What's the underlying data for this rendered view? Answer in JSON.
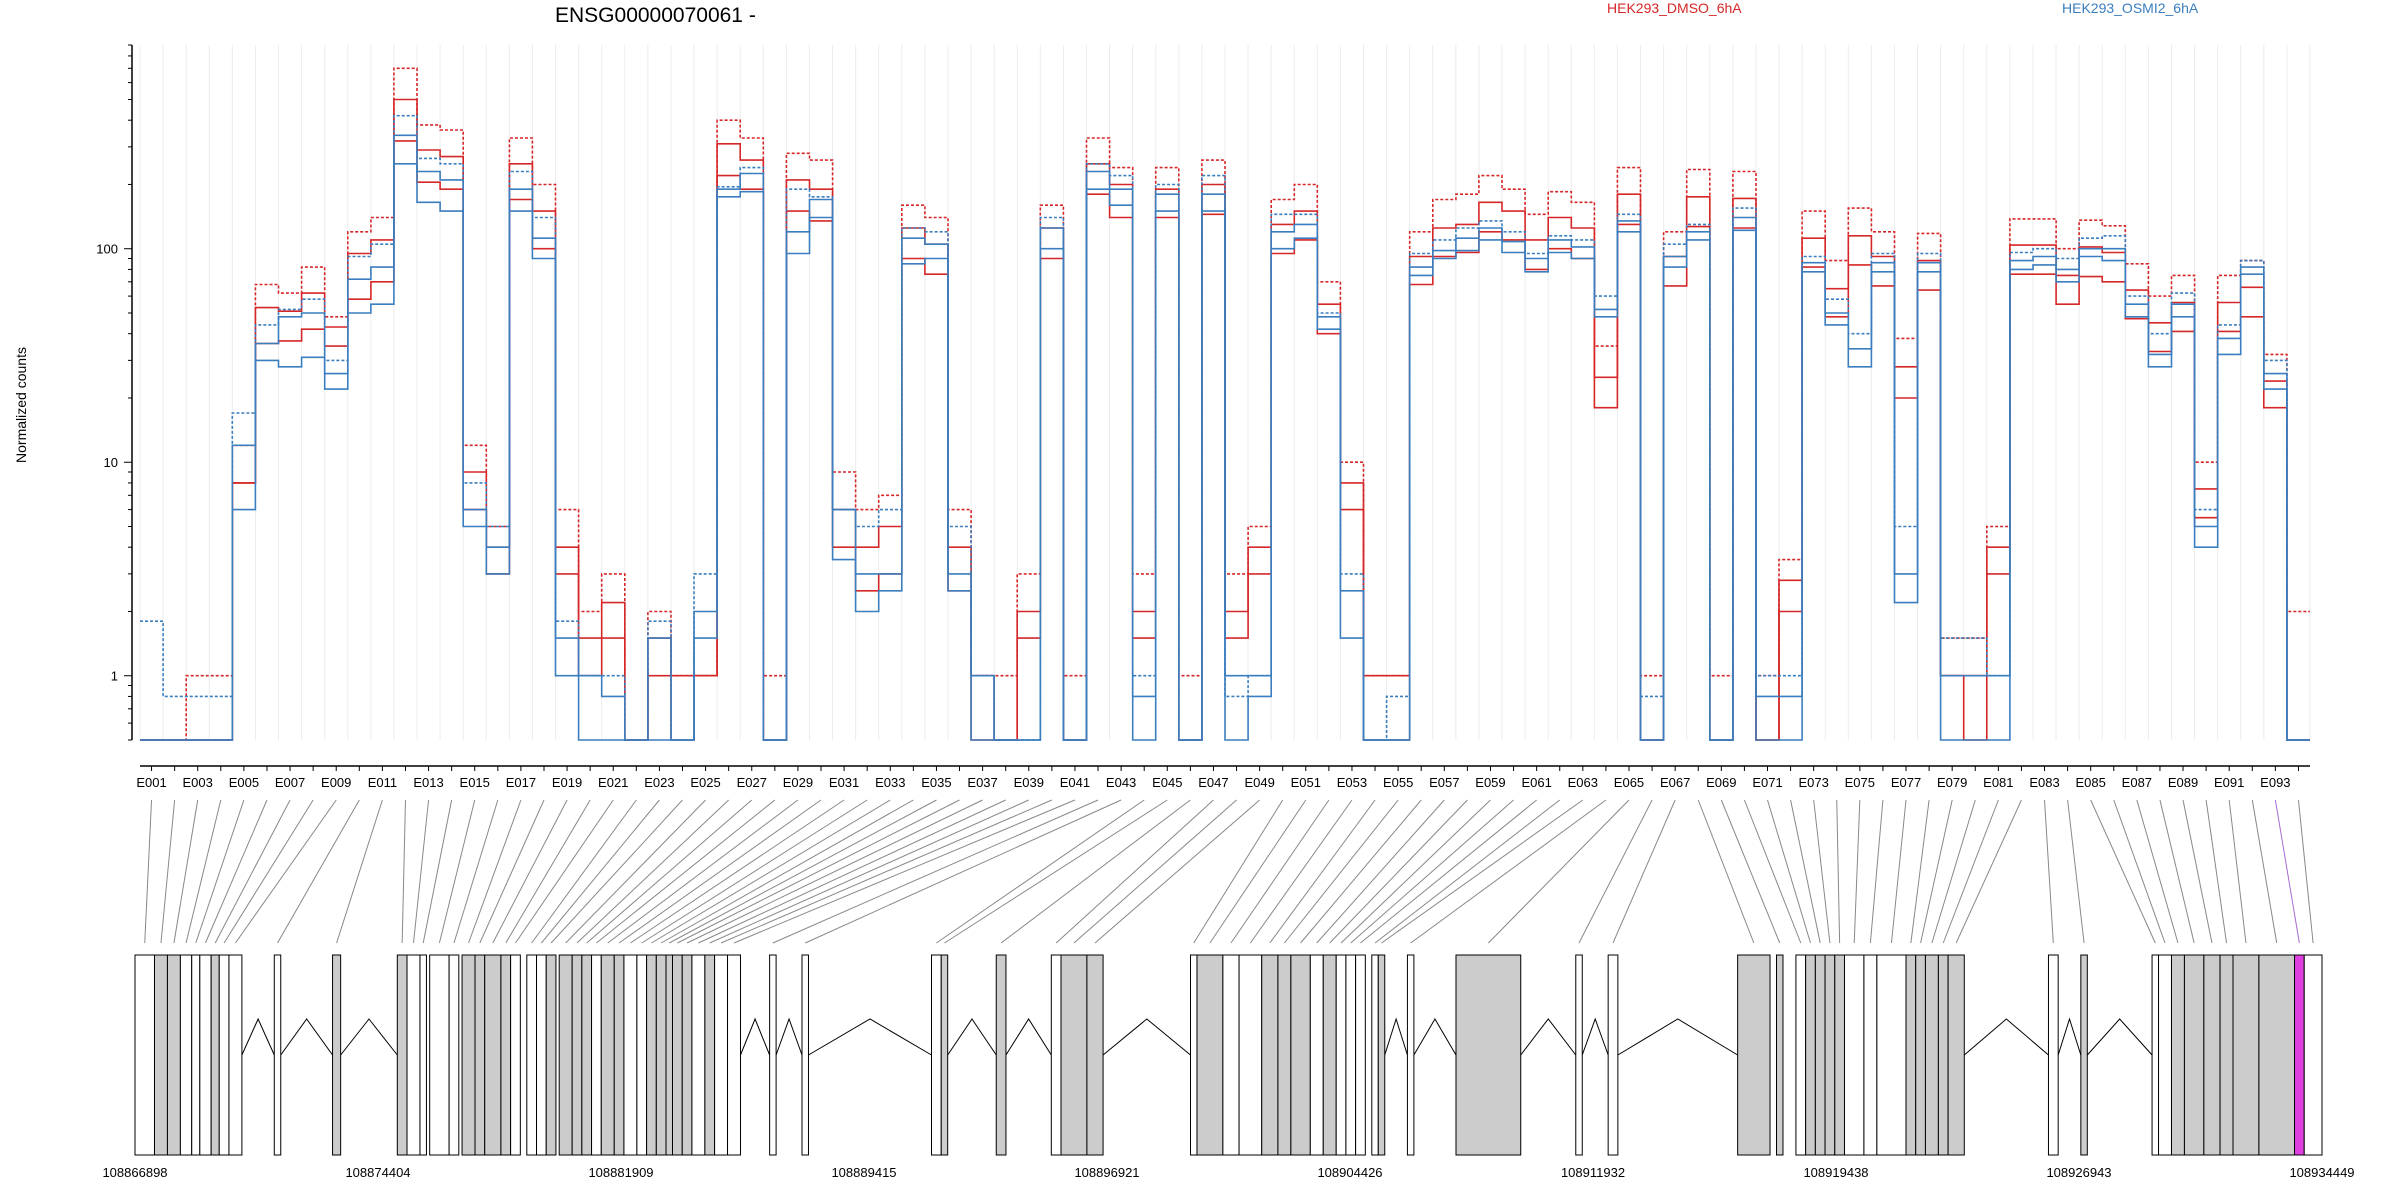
{
  "chart_data": {
    "type": "line",
    "title": "ENSG00000070061 -",
    "ylabel": "Normalized counts",
    "yscale": "log",
    "ylim": [
      0.5,
      900
    ],
    "yticks": [
      1,
      10,
      100
    ],
    "ytick_labels": [
      "1",
      "10",
      "100"
    ],
    "legend_position": "top",
    "series_colors": {
      "HEK293_DMSO_6hA": "#d62728",
      "HEK293_OSMI2_6hA": "#3a7ebf"
    },
    "legend": [
      {
        "name": "HEK293_DMSO_6hA",
        "color": "#d62728"
      },
      {
        "name": "HEK293_OSMI2_6hA",
        "color": "#3a7ebf"
      }
    ],
    "exon_labels": [
      "E001",
      "E003",
      "E005",
      "E007",
      "E009",
      "E011",
      "E013",
      "E015",
      "E017",
      "E019",
      "E021",
      "E023",
      "E025",
      "E027",
      "E029",
      "E031",
      "E033",
      "E035",
      "E037",
      "E039",
      "E041",
      "E043",
      "E045",
      "E047",
      "E049",
      "E051",
      "E053",
      "E055",
      "E057",
      "E059",
      "E061",
      "E063",
      "E065",
      "E067",
      "E069",
      "E071",
      "E073",
      "E075",
      "E077",
      "E079",
      "E081",
      "E083",
      "E085",
      "E087",
      "E089",
      "E091",
      "E093"
    ],
    "bins": [
      "E001",
      "E002",
      "E003",
      "E004",
      "E005",
      "E006",
      "E007",
      "E008",
      "E009",
      "E010",
      "E011",
      "E012",
      "E013",
      "E014",
      "E015",
      "E016",
      "E017",
      "E018",
      "E019",
      "E020",
      "E021",
      "E022",
      "E023",
      "E024",
      "E025",
      "E026",
      "E027",
      "E028",
      "E029",
      "E030",
      "E031",
      "E032",
      "E033",
      "E034",
      "E035",
      "E036",
      "E037",
      "E038",
      "E039",
      "E040",
      "E041",
      "E042",
      "E043",
      "E044",
      "E045",
      "E046",
      "E047",
      "E048",
      "E049",
      "E050",
      "E051",
      "E052",
      "E053",
      "E054",
      "E055",
      "E056",
      "E057",
      "E058",
      "E059",
      "E060",
      "E061",
      "E062",
      "E063",
      "E064",
      "E065",
      "E066",
      "E067",
      "E068",
      "E069",
      "E070",
      "E071",
      "E072",
      "E073",
      "E074",
      "E075",
      "E076",
      "E077",
      "E078",
      "E079",
      "E080",
      "E081",
      "E082",
      "E083",
      "E084",
      "E085",
      "E086",
      "E087",
      "E088",
      "E089",
      "E090",
      "E091",
      "E092",
      "E093",
      "E094"
    ],
    "series": [
      {
        "group": "HEK293_DMSO_6hA",
        "style": "dashed",
        "values": [
          0.5,
          0.5,
          1,
          1,
          12,
          68,
          62,
          82,
          48,
          120,
          140,
          700,
          380,
          360,
          12,
          5,
          330,
          200,
          6,
          2,
          3,
          0.5,
          2,
          1,
          1,
          400,
          330,
          1,
          280,
          260,
          9,
          6,
          7,
          160,
          140,
          6,
          1,
          1,
          3,
          160,
          1,
          330,
          240,
          3,
          240,
          1,
          260,
          3,
          5,
          170,
          200,
          70,
          10,
          1,
          1,
          120,
          170,
          180,
          220,
          190,
          145,
          185,
          165,
          35,
          240,
          1,
          120,
          235,
          1,
          230,
          1,
          3.5,
          150,
          88,
          155,
          120,
          38,
          118,
          1.5,
          1.5,
          5,
          138,
          138,
          100,
          136,
          128,
          85,
          60,
          75,
          10,
          75,
          88,
          32,
          2
        ]
      },
      {
        "group": "HEK293_DMSO_6hA",
        "style": "solid",
        "values": [
          0.5,
          0.5,
          0.5,
          0.5,
          8,
          53,
          51,
          62,
          43,
          95,
          110,
          500,
          290,
          270,
          9,
          4,
          250,
          150,
          4,
          1.5,
          2.2,
          0.5,
          1.5,
          1,
          1,
          310,
          260,
          0.5,
          210,
          190,
          6,
          4,
          5,
          125,
          105,
          4,
          1,
          0.5,
          2,
          125,
          0.5,
          250,
          200,
          2,
          190,
          0.5,
          200,
          2,
          4,
          130,
          150,
          55,
          8,
          1,
          1,
          92,
          125,
          130,
          165,
          150,
          110,
          140,
          125,
          25,
          180,
          0.5,
          92,
          175,
          0.5,
          172,
          0.5,
          2.8,
          112,
          65,
          115,
          92,
          28,
          88,
          1,
          1,
          4,
          104,
          104,
          75,
          102,
          96,
          64,
          45,
          56,
          7.5,
          56,
          66,
          24,
          0.5
        ]
      },
      {
        "group": "HEK293_DMSO_6hA",
        "style": "solid",
        "values": [
          0.5,
          0.5,
          0.5,
          0.5,
          8,
          36,
          37,
          42,
          35,
          58,
          70,
          320,
          205,
          190,
          6,
          3,
          170,
          100,
          3,
          1,
          1.5,
          0.5,
          1,
          0.5,
          1,
          220,
          190,
          0.5,
          150,
          135,
          4,
          2.5,
          3,
          90,
          76,
          2.5,
          0.5,
          0.5,
          1.5,
          90,
          0.5,
          180,
          140,
          1.5,
          140,
          0.5,
          145,
          1.5,
          3,
          95,
          110,
          40,
          6,
          0.5,
          0.5,
          68,
          92,
          96,
          120,
          110,
          80,
          100,
          90,
          18,
          130,
          0.5,
          67,
          127,
          0.5,
          125,
          0.5,
          2,
          82,
          48,
          84,
          67,
          20,
          64,
          1,
          0.5,
          3,
          76,
          76,
          55,
          74,
          70,
          47,
          33,
          41,
          5.5,
          41,
          48,
          18,
          0.5
        ]
      },
      {
        "group": "HEK293_OSMI2_6hA",
        "style": "dashed",
        "values": [
          1.8,
          0.8,
          0.8,
          0.8,
          17,
          44,
          52,
          58,
          30,
          92,
          105,
          420,
          265,
          250,
          8,
          5,
          230,
          140,
          1.8,
          1,
          1,
          0.5,
          1.8,
          0.5,
          3,
          195,
          240,
          0.5,
          190,
          175,
          6,
          5,
          6,
          125,
          120,
          5,
          1,
          0.5,
          0.5,
          140,
          0.5,
          250,
          220,
          1,
          200,
          0.5,
          220,
          0.8,
          1,
          145,
          145,
          50,
          3,
          0.5,
          0.8,
          95,
          110,
          125,
          135,
          120,
          95,
          115,
          110,
          60,
          145,
          0.8,
          105,
          130,
          0.5,
          155,
          1,
          1,
          92,
          58,
          40,
          95,
          5,
          95,
          1.5,
          1.5,
          1,
          96,
          100,
          90,
          112,
          115,
          60,
          40,
          62,
          6,
          44,
          88,
          30,
          0.5
        ]
      },
      {
        "group": "HEK293_OSMI2_6hA",
        "style": "solid",
        "values": [
          0.5,
          0.5,
          0.5,
          0.5,
          12,
          36,
          48,
          50,
          26,
          72,
          82,
          340,
          230,
          210,
          6,
          4,
          190,
          112,
          1.5,
          1,
          0.8,
          0.5,
          1.5,
          0.5,
          2,
          190,
          225,
          0.5,
          120,
          170,
          6,
          3,
          3,
          112,
          105,
          3,
          1,
          0.5,
          0.5,
          125,
          0.5,
          230,
          190,
          0.8,
          180,
          0.5,
          180,
          1,
          1,
          120,
          130,
          48,
          2.5,
          0.5,
          0.5,
          82,
          98,
          112,
          125,
          108,
          90,
          110,
          102,
          52,
          135,
          0.5,
          92,
          120,
          0.5,
          140,
          0.8,
          0.8,
          86,
          50,
          34,
          86,
          3,
          86,
          1,
          1,
          1,
          88,
          92,
          80,
          100,
          100,
          55,
          32,
          55,
          5,
          38,
          82,
          26,
          0.5
        ]
      },
      {
        "group": "HEK293_OSMI2_6hA",
        "style": "solid",
        "values": [
          0.5,
          0.5,
          0.5,
          0.5,
          6,
          30,
          28,
          31,
          22,
          50,
          55,
          250,
          165,
          150,
          5,
          3,
          150,
          90,
          1,
          0.5,
          0.5,
          0.5,
          0.5,
          0.5,
          1.5,
          175,
          185,
          0.5,
          95,
          140,
          3.5,
          2,
          2.5,
          85,
          90,
          2.5,
          0.5,
          0.5,
          0.5,
          100,
          0.5,
          190,
          160,
          0.5,
          150,
          0.5,
          150,
          0.5,
          0.8,
          100,
          112,
          42,
          1.5,
          0.5,
          0.5,
          75,
          90,
          98,
          110,
          96,
          78,
          96,
          90,
          48,
          120,
          0.5,
          82,
          110,
          0.5,
          122,
          0.5,
          0.5,
          78,
          44,
          28,
          78,
          2.2,
          78,
          0.5,
          0.5,
          0.5,
          80,
          84,
          70,
          92,
          88,
          48,
          28,
          48,
          4,
          32,
          76,
          22,
          0.5
        ]
      }
    ],
    "genomic_axis": {
      "tick_labels": [
        "108866898",
        "108874404",
        "108881909",
        "108889415",
        "108896921",
        "108904426",
        "108911932",
        "108919438",
        "108926943",
        "108934449"
      ],
      "range": [
        108866898,
        108934449
      ]
    },
    "exon_bins": [
      [
        108866898,
        108867500
      ],
      [
        108867500,
        108867900
      ],
      [
        108867900,
        108868300
      ],
      [
        108868300,
        108868650
      ],
      [
        108868650,
        108868900
      ],
      [
        108868900,
        108869250
      ],
      [
        108869250,
        108869500
      ],
      [
        108869500,
        108869800
      ],
      [
        108869800,
        108870200
      ],
      [
        108871200,
        108871400
      ],
      [
        108873000,
        108873250
      ],
      [
        108875000,
        108875300
      ],
      [
        108875300,
        108875700
      ],
      [
        108875700,
        108875900
      ],
      [
        108876000,
        108876600
      ],
      [
        108876600,
        108876900
      ],
      [
        108877000,
        108877400
      ],
      [
        108877400,
        108877700
      ],
      [
        108877700,
        108878200
      ],
      [
        108878200,
        108878500
      ],
      [
        108878500,
        108878800
      ],
      [
        108879000,
        108879300
      ],
      [
        108879300,
        108879600
      ],
      [
        108879600,
        108879900
      ],
      [
        108880000,
        108880400
      ],
      [
        108880400,
        108880700
      ],
      [
        108880700,
        108881000
      ],
      [
        108881000,
        108881300
      ],
      [
        108881300,
        108881700
      ],
      [
        108881700,
        108882000
      ],
      [
        108882000,
        108882400
      ],
      [
        108882400,
        108882700
      ],
      [
        108882700,
        108883000
      ],
      [
        108883000,
        108883300
      ],
      [
        108883300,
        108883500
      ],
      [
        108883500,
        108883800
      ],
      [
        108883800,
        108884100
      ],
      [
        108884100,
        108884500
      ],
      [
        108884500,
        108884800
      ],
      [
        108884800,
        108885200
      ],
      [
        108885200,
        108885600
      ],
      [
        108886500,
        108886700
      ],
      [
        108887500,
        108887700
      ],
      [
        108891500,
        108891800
      ],
      [
        108891800,
        108892000
      ],
      [
        108893500,
        108893800
      ],
      [
        108895200,
        108895500
      ],
      [
        108895500,
        108896300
      ],
      [
        108896300,
        108896800
      ],
      [
        108899500,
        108899700
      ],
      [
        108899700,
        108900500
      ],
      [
        108900500,
        108901000
      ],
      [
        108901000,
        108901700
      ],
      [
        108901700,
        108902200
      ],
      [
        108902200,
        108902600
      ],
      [
        108902600,
        108903200
      ],
      [
        108903200,
        108903600
      ],
      [
        108903600,
        108904000
      ],
      [
        108904000,
        108904300
      ],
      [
        108904300,
        108904600
      ],
      [
        108904600,
        108904900
      ],
      [
        108905100,
        108905300
      ],
      [
        108905300,
        108905500
      ],
      [
        108906200,
        108906400
      ],
      [
        108907700,
        108909700
      ],
      [
        108911400,
        108911600
      ],
      [
        108912400,
        108912700
      ],
      [
        108916400,
        108917400
      ],
      [
        108917600,
        108917800
      ],
      [
        108918200,
        108918500
      ],
      [
        108918500,
        108918800
      ],
      [
        108918800,
        108919100
      ],
      [
        108919100,
        108919400
      ],
      [
        108919400,
        108919700
      ],
      [
        108919700,
        108920300
      ],
      [
        108920300,
        108920700
      ],
      [
        108920700,
        108921600
      ],
      [
        108921600,
        108921900
      ],
      [
        108921900,
        108922200
      ],
      [
        108922200,
        108922600
      ],
      [
        108922600,
        108922900
      ],
      [
        108922900,
        108923400
      ],
      [
        108926000,
        108926300
      ],
      [
        108927000,
        108927200
      ],
      [
        108929200,
        108929400
      ],
      [
        108929400,
        108929800
      ],
      [
        108929800,
        108930200
      ],
      [
        108930200,
        108930800
      ],
      [
        108930800,
        108931300
      ],
      [
        108931300,
        108931700
      ],
      [
        108931700,
        108932500
      ],
      [
        108932500,
        108933600
      ],
      [
        108933600,
        108933900
      ],
      [
        108933900,
        108934449
      ]
    ],
    "shaded_exons": [
      1,
      2,
      6,
      10,
      11,
      16,
      17,
      18,
      19,
      23,
      24,
      25,
      26,
      28,
      29,
      32,
      33,
      34,
      35,
      36,
      38,
      44,
      45,
      47,
      48,
      50,
      53,
      54,
      55,
      57,
      62,
      64,
      67,
      68,
      70,
      71,
      72,
      73,
      77,
      78,
      79,
      80,
      81,
      83,
      86,
      87,
      88,
      89,
      90,
      91
    ],
    "highlighted_exon": 92,
    "highlight_color": "#e040e0",
    "introns": [
      [
        108870200,
        108871200
      ],
      [
        108871400,
        108873000
      ],
      [
        108873250,
        108875000
      ],
      [
        108885600,
        108886500
      ],
      [
        108886700,
        108887500
      ],
      [
        108887700,
        108891500
      ],
      [
        108892000,
        108893500
      ],
      [
        108893800,
        108895200
      ],
      [
        108896800,
        108899500
      ],
      [
        108905500,
        108906200
      ],
      [
        108906400,
        108907700
      ],
      [
        108909700,
        108911400
      ],
      [
        108911600,
        108912400
      ],
      [
        108912700,
        108916400
      ],
      [
        108923400,
        108926000
      ],
      [
        108926300,
        108927000
      ],
      [
        108927200,
        108929200
      ]
    ]
  }
}
